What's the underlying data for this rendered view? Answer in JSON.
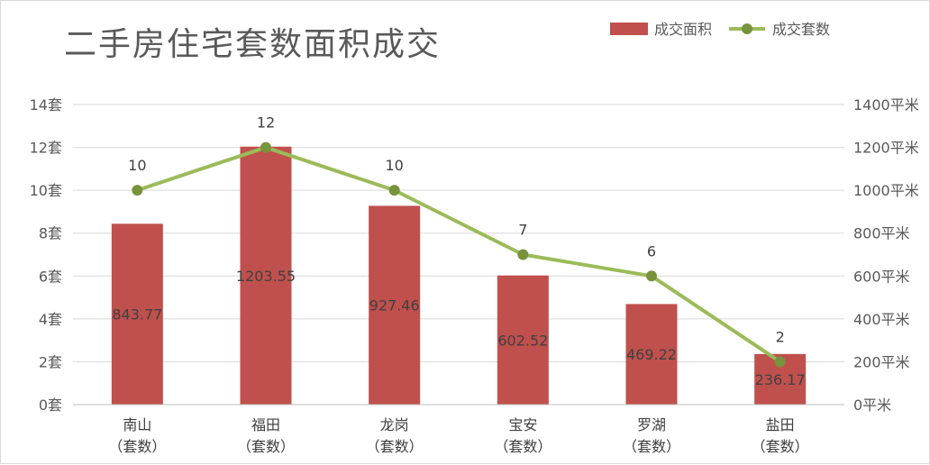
{
  "chart_data": {
    "type": "bar",
    "title": "二手房住宅套数面积成交",
    "categories": [
      "南山",
      "福田",
      "龙岗",
      "宝安",
      "罗湖",
      "盐田"
    ],
    "category_suffix": "（套数）",
    "series": [
      {
        "name": "成交面积",
        "type": "bar",
        "axis": "right",
        "color": "#c0504d",
        "values": [
          843.77,
          1203.55,
          927.46,
          602.52,
          469.22,
          236.17
        ]
      },
      {
        "name": "成交套数",
        "type": "line",
        "axis": "left",
        "color": "#9bbb59",
        "marker_color": "#77933c",
        "values": [
          10,
          12,
          10,
          7,
          6,
          2
        ]
      }
    ],
    "y_left": {
      "unit": "套",
      "min": 0,
      "max": 14,
      "step": 2
    },
    "y_right": {
      "unit": "平米",
      "min": 0,
      "max": 1400,
      "step": 200
    },
    "grid": true,
    "legend_position": "top-right"
  }
}
